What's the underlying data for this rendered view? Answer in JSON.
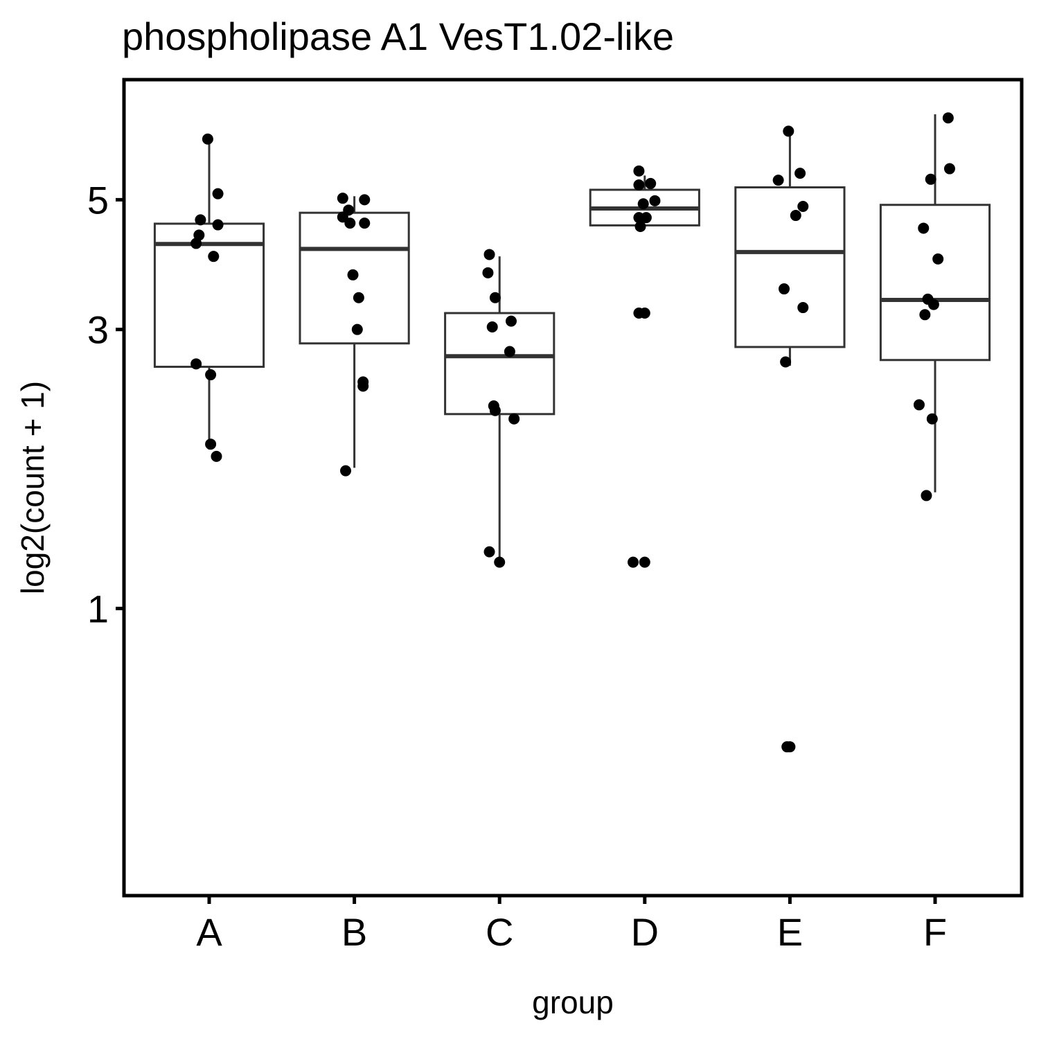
{
  "chart_data": {
    "type": "boxplot",
    "title": "phospholipase A1 VesT1.02-like",
    "xlabel": "group",
    "ylabel": "log2(count + 1)",
    "y_scale": "log",
    "ylim": [
      0.37,
      7.0
    ],
    "y_ticks": [
      1,
      3,
      5
    ],
    "y_tick_labels": [
      "1",
      "3",
      "5"
    ],
    "grid": false,
    "legend": "none",
    "categories": [
      "A",
      "B",
      "C",
      "D",
      "E",
      "F"
    ],
    "boxes": [
      {
        "group": "A",
        "whisker_low": 1.87,
        "q1": 2.59,
        "median": 4.2,
        "q3": 4.55,
        "whisker_high": 6.3
      },
      {
        "group": "B",
        "whisker_low": 1.74,
        "q1": 2.84,
        "median": 4.12,
        "q3": 4.75,
        "whisker_high": 5.07
      },
      {
        "group": "C",
        "whisker_low": 1.2,
        "q1": 2.15,
        "median": 2.7,
        "q3": 3.2,
        "whisker_high": 4.0
      },
      {
        "group": "D",
        "whisker_low": 4.52,
        "q1": 4.52,
        "median": 4.83,
        "q3": 5.2,
        "whisker_high": 5.5
      },
      {
        "group": "E",
        "whisker_low": 2.6,
        "q1": 2.8,
        "median": 4.07,
        "q3": 5.25,
        "whisker_high": 6.6
      },
      {
        "group": "F",
        "whisker_low": 1.58,
        "q1": 2.66,
        "median": 3.37,
        "q3": 4.9,
        "whisker_high": 7.0
      }
    ],
    "points": [
      {
        "group": "A",
        "jitter": -0.01,
        "y": 6.35
      },
      {
        "group": "A",
        "jitter": 0.06,
        "y": 5.12
      },
      {
        "group": "A",
        "jitter": -0.06,
        "y": 4.62
      },
      {
        "group": "A",
        "jitter": 0.06,
        "y": 4.53
      },
      {
        "group": "A",
        "jitter": -0.07,
        "y": 4.35
      },
      {
        "group": "A",
        "jitter": -0.09,
        "y": 4.21
      },
      {
        "group": "A",
        "jitter": 0.03,
        "y": 4.0
      },
      {
        "group": "A",
        "jitter": -0.09,
        "y": 2.62
      },
      {
        "group": "A",
        "jitter": 0.01,
        "y": 2.51
      },
      {
        "group": "A",
        "jitter": 0.01,
        "y": 1.91
      },
      {
        "group": "A",
        "jitter": 0.05,
        "y": 1.82
      },
      {
        "group": "B",
        "jitter": -0.08,
        "y": 5.03
      },
      {
        "group": "B",
        "jitter": 0.07,
        "y": 5.0
      },
      {
        "group": "B",
        "jitter": -0.04,
        "y": 4.8
      },
      {
        "group": "B",
        "jitter": -0.08,
        "y": 4.67
      },
      {
        "group": "B",
        "jitter": -0.03,
        "y": 4.56
      },
      {
        "group": "B",
        "jitter": 0.07,
        "y": 4.56
      },
      {
        "group": "B",
        "jitter": -0.01,
        "y": 3.72
      },
      {
        "group": "B",
        "jitter": 0.03,
        "y": 3.4
      },
      {
        "group": "B",
        "jitter": 0.02,
        "y": 3.0
      },
      {
        "group": "B",
        "jitter": 0.06,
        "y": 2.44
      },
      {
        "group": "B",
        "jitter": 0.06,
        "y": 2.4
      },
      {
        "group": "B",
        "jitter": -0.06,
        "y": 1.72
      },
      {
        "group": "C",
        "jitter": -0.07,
        "y": 4.03
      },
      {
        "group": "C",
        "jitter": -0.08,
        "y": 3.75
      },
      {
        "group": "C",
        "jitter": -0.03,
        "y": 3.4
      },
      {
        "group": "C",
        "jitter": 0.08,
        "y": 3.1
      },
      {
        "group": "C",
        "jitter": -0.05,
        "y": 3.03
      },
      {
        "group": "C",
        "jitter": 0.07,
        "y": 2.75
      },
      {
        "group": "C",
        "jitter": -0.04,
        "y": 2.22
      },
      {
        "group": "C",
        "jitter": -0.03,
        "y": 2.18
      },
      {
        "group": "C",
        "jitter": 0.1,
        "y": 2.11
      },
      {
        "group": "C",
        "jitter": -0.07,
        "y": 1.25
      },
      {
        "group": "C",
        "jitter": 0.0,
        "y": 1.2
      },
      {
        "group": "D",
        "jitter": -0.04,
        "y": 5.6
      },
      {
        "group": "D",
        "jitter": -0.04,
        "y": 5.3
      },
      {
        "group": "D",
        "jitter": 0.04,
        "y": 5.33
      },
      {
        "group": "D",
        "jitter": 0.07,
        "y": 4.98
      },
      {
        "group": "D",
        "jitter": -0.01,
        "y": 4.92
      },
      {
        "group": "D",
        "jitter": -0.04,
        "y": 4.66
      },
      {
        "group": "D",
        "jitter": 0.01,
        "y": 4.66
      },
      {
        "group": "D",
        "jitter": -0.03,
        "y": 4.5
      },
      {
        "group": "D",
        "jitter": -0.04,
        "y": 3.2
      },
      {
        "group": "D",
        "jitter": 0.0,
        "y": 3.2
      },
      {
        "group": "D",
        "jitter": -0.08,
        "y": 1.2
      },
      {
        "group": "D",
        "jitter": 0.0,
        "y": 1.2
      },
      {
        "group": "E",
        "jitter": -0.01,
        "y": 6.55
      },
      {
        "group": "E",
        "jitter": 0.07,
        "y": 5.55
      },
      {
        "group": "E",
        "jitter": -0.08,
        "y": 5.4
      },
      {
        "group": "E",
        "jitter": 0.09,
        "y": 4.87
      },
      {
        "group": "E",
        "jitter": 0.04,
        "y": 4.7
      },
      {
        "group": "E",
        "jitter": -0.04,
        "y": 3.52
      },
      {
        "group": "E",
        "jitter": 0.09,
        "y": 3.27
      },
      {
        "group": "E",
        "jitter": -0.03,
        "y": 2.64
      },
      {
        "group": "E",
        "jitter": -0.02,
        "y": 0.58
      },
      {
        "group": "E",
        "jitter": 0.0,
        "y": 0.58
      },
      {
        "group": "F",
        "jitter": 0.09,
        "y": 6.9
      },
      {
        "group": "F",
        "jitter": 0.1,
        "y": 5.65
      },
      {
        "group": "F",
        "jitter": -0.03,
        "y": 5.42
      },
      {
        "group": "F",
        "jitter": -0.08,
        "y": 4.47
      },
      {
        "group": "F",
        "jitter": 0.02,
        "y": 3.96
      },
      {
        "group": "F",
        "jitter": -0.05,
        "y": 3.38
      },
      {
        "group": "F",
        "jitter": -0.01,
        "y": 3.31
      },
      {
        "group": "F",
        "jitter": -0.07,
        "y": 3.18
      },
      {
        "group": "F",
        "jitter": -0.11,
        "y": 2.23
      },
      {
        "group": "F",
        "jitter": -0.02,
        "y": 2.11
      },
      {
        "group": "F",
        "jitter": -0.06,
        "y": 1.56
      }
    ]
  }
}
